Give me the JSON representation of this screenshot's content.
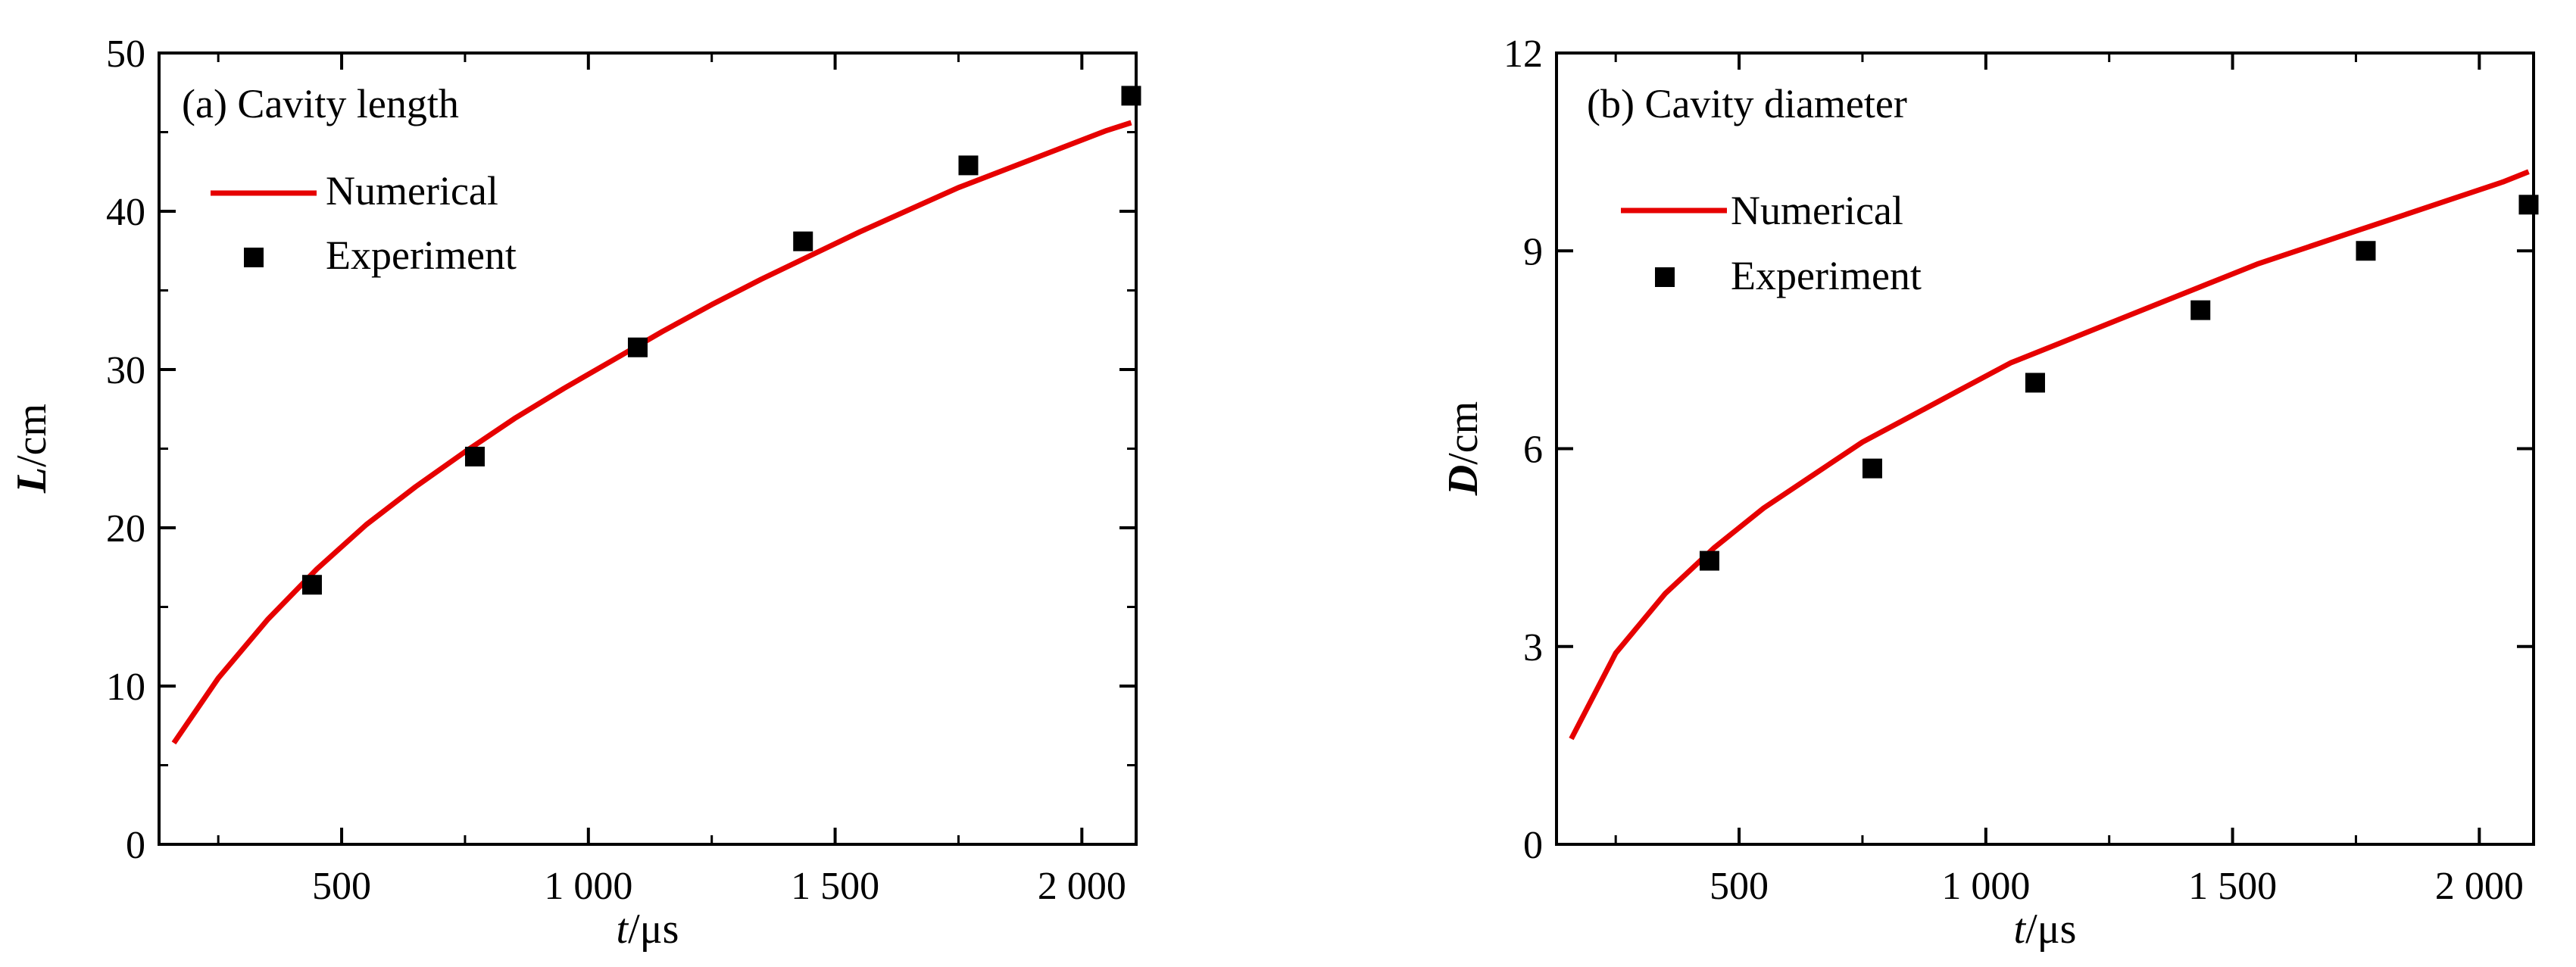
{
  "chart_data": [
    {
      "type": "line",
      "title": "(a) Cavity length",
      "xlabel": {
        "var": "t",
        "unit": "/μs"
      },
      "ylabel": {
        "var": "L",
        "unit": "/cm"
      },
      "xlim": [
        130,
        2110
      ],
      "ylim": [
        0,
        50
      ],
      "x_ticks": [
        500,
        1000,
        1500,
        2000
      ],
      "x_tick_labels": [
        "500",
        "1 000",
        "1 500",
        "2 000"
      ],
      "y_ticks": [
        0,
        10,
        20,
        30,
        40,
        50
      ],
      "y_tick_labels": [
        "0",
        "10",
        "20",
        "30",
        "40",
        "50"
      ],
      "legend": {
        "position": "top-left"
      },
      "series": [
        {
          "name": "Numerical",
          "kind": "line",
          "color": "#e60000",
          "x": [
            160,
            250,
            350,
            450,
            550,
            650,
            750,
            850,
            950,
            1050,
            1150,
            1250,
            1350,
            1450,
            1550,
            1650,
            1750,
            1850,
            1950,
            2050,
            2100
          ],
          "y": [
            6.4,
            10.5,
            14.2,
            17.4,
            20.2,
            22.6,
            24.8,
            26.9,
            28.8,
            30.6,
            32.4,
            34.1,
            35.7,
            37.2,
            38.7,
            40.1,
            41.5,
            42.7,
            43.9,
            45.1,
            45.6
          ]
        },
        {
          "name": "Experiment",
          "kind": "scatter",
          "marker": "square",
          "color": "#000000",
          "x": [
            440,
            770,
            1100,
            1435,
            1770,
            2100
          ],
          "y": [
            16.4,
            24.5,
            31.4,
            38.1,
            42.9,
            47.3
          ]
        }
      ]
    },
    {
      "type": "line",
      "title": "(b) Cavity diameter",
      "xlabel": {
        "var": "t",
        "unit": "/μs"
      },
      "ylabel": {
        "var": "D",
        "unit": "/cm"
      },
      "xlim": [
        130,
        2110
      ],
      "ylim": [
        0,
        12
      ],
      "x_ticks": [
        500,
        1000,
        1500,
        2000
      ],
      "x_tick_labels": [
        "500",
        "1 000",
        "1 500",
        "2 000"
      ],
      "y_ticks": [
        0,
        3,
        6,
        9,
        12
      ],
      "y_tick_labels": [
        "0",
        "3",
        "6",
        "9",
        "12"
      ],
      "legend": {
        "position": "top-left"
      },
      "series": [
        {
          "name": "Numerical",
          "kind": "line",
          "color": "#e60000",
          "x": [
            160,
            250,
            350,
            450,
            550,
            650,
            750,
            850,
            950,
            1050,
            1150,
            1250,
            1350,
            1450,
            1550,
            1650,
            1750,
            1850,
            1950,
            2050,
            2100
          ],
          "y": [
            1.6,
            2.9,
            3.8,
            4.5,
            5.1,
            5.6,
            6.1,
            6.5,
            6.9,
            7.3,
            7.6,
            7.9,
            8.2,
            8.5,
            8.8,
            9.05,
            9.3,
            9.55,
            9.8,
            10.05,
            10.2
          ]
        },
        {
          "name": "Experiment",
          "kind": "scatter",
          "marker": "square",
          "color": "#000000",
          "x": [
            440,
            770,
            1100,
            1435,
            1770,
            2100
          ],
          "y": [
            4.3,
            5.7,
            7.0,
            8.1,
            9.0,
            9.7
          ]
        }
      ]
    }
  ]
}
